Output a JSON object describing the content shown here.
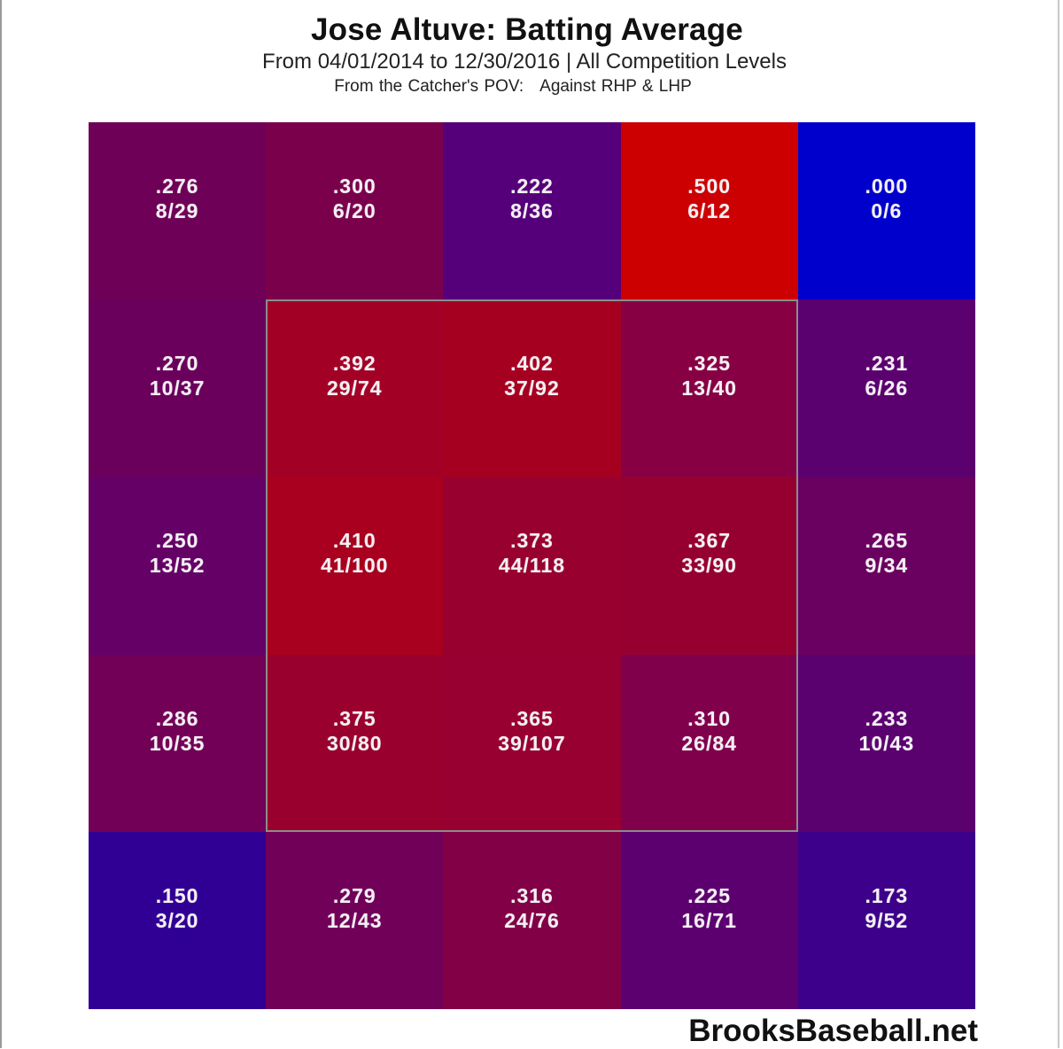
{
  "header": {
    "title": "Jose Altuve: Batting Average",
    "subtitle": "From 04/01/2014 to 12/30/2016 | All Competition Levels",
    "pov_label": "From the Catcher's POV:",
    "pitcher_filter": "Against RHP & LHP"
  },
  "watermark": "BrooksBaseball.net",
  "chart_data": {
    "type": "heatmap",
    "title": "Jose Altuve: Batting Average",
    "subtitle": "From 04/01/2014 to 12/30/2016 | All Competition Levels",
    "note": "From the Catcher's POV: Against RHP & LHP",
    "xlabel": "",
    "ylabel": "",
    "grid_size": [
      5,
      5
    ],
    "strike_zone": "inner 3x3 cells (rows 1-3, cols 1-3) outlined",
    "color_scale": {
      "low": "#0000cc",
      "high": "#cc0000"
    },
    "rows": [
      [
        {
          "avg": ".276",
          "hits_ab": "8/29",
          "color": "#6e0058"
        },
        {
          "avg": ".300",
          "hits_ab": "6/20",
          "color": "#7a004c"
        },
        {
          "avg": ".222",
          "hits_ab": "8/36",
          "color": "#55007a"
        },
        {
          "avg": ".500",
          "hits_ab": "6/12",
          "color": "#cc0000"
        },
        {
          "avg": ".000",
          "hits_ab": "0/6",
          "color": "#0000cc"
        }
      ],
      [
        {
          "avg": ".270",
          "hits_ab": "10/37",
          "color": "#6a005c"
        },
        {
          "avg": ".392",
          "hits_ab": "29/74",
          "color": "#a30026"
        },
        {
          "avg": ".402",
          "hits_ab": "37/92",
          "color": "#a60021"
        },
        {
          "avg": ".325",
          "hits_ab": "13/40",
          "color": "#870043"
        },
        {
          "avg": ".231",
          "hits_ab": "6/26",
          "color": "#5b006f"
        }
      ],
      [
        {
          "avg": ".250",
          "hits_ab": "13/52",
          "color": "#640066"
        },
        {
          "avg": ".410",
          "hits_ab": "41/100",
          "color": "#a8001e"
        },
        {
          "avg": ".373",
          "hits_ab": "44/118",
          "color": "#98002f"
        },
        {
          "avg": ".367",
          "hits_ab": "33/90",
          "color": "#960031"
        },
        {
          "avg": ".265",
          "hits_ab": "9/34",
          "color": "#6a0060"
        }
      ],
      [
        {
          "avg": ".286",
          "hits_ab": "10/35",
          "color": "#720056"
        },
        {
          "avg": ".375",
          "hits_ab": "30/80",
          "color": "#9a002d"
        },
        {
          "avg": ".365",
          "hits_ab": "39/107",
          "color": "#970031"
        },
        {
          "avg": ".310",
          "hits_ab": "26/84",
          "color": "#80004c"
        },
        {
          "avg": ".233",
          "hits_ab": "10/43",
          "color": "#5a006f"
        }
      ],
      [
        {
          "avg": ".150",
          "hits_ab": "3/20",
          "color": "#300094"
        },
        {
          "avg": ".279",
          "hits_ab": "12/43",
          "color": "#700058"
        },
        {
          "avg": ".316",
          "hits_ab": "24/76",
          "color": "#820046"
        },
        {
          "avg": ".225",
          "hits_ab": "16/71",
          "color": "#5c0070"
        },
        {
          "avg": ".173",
          "hits_ab": "9/52",
          "color": "#3c008a"
        }
      ]
    ]
  }
}
